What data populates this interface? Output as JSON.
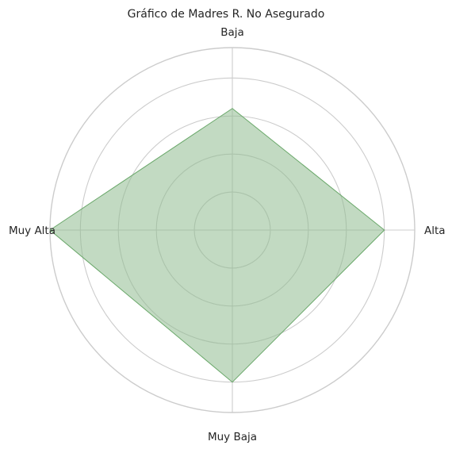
{
  "chart_data": {
    "type": "radar",
    "title": "Gráfico de Madres R. No Asegurado",
    "categories": [
      "Alta",
      "Baja",
      "Muy Alta",
      "Muy Baja"
    ],
    "series": [
      {
        "values": [
          4,
          3.2,
          4.8,
          4
        ]
      }
    ],
    "rlim": [
      0,
      4.8
    ],
    "rticks": [
      1,
      2,
      3,
      4
    ],
    "grid": true,
    "fill_color": "#8fbc8f",
    "fill_opacity": 0.55,
    "edge_color": "#6aa86a",
    "grid_color": "#cccccc"
  }
}
